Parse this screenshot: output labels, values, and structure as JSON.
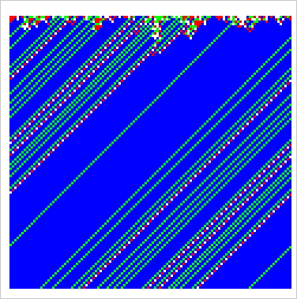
{
  "automaton": {
    "kind": "one-dimensional cellular automaton",
    "palette": {
      "state_0": "#ffffff",
      "state_1": "#ff0000",
      "state_2": "#00ff00",
      "state_3": "#0000ff"
    }
  }
}
